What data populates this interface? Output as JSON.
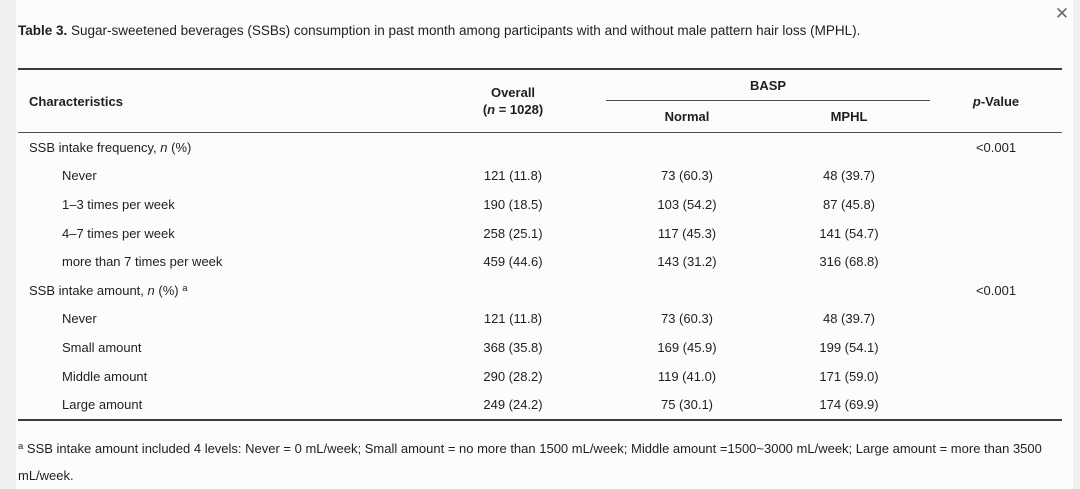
{
  "colors": {
    "page_bg": "#eff0f0",
    "card_bg": "#fcfcfd",
    "text": "#1f1f1f",
    "rule": "#3c3c3c",
    "close_icon": "#6b6b6b"
  },
  "icons": {
    "close": "✕"
  },
  "title": {
    "prefix": "Table 3.",
    "rest": " Sugar-sweetened beverages (SSBs) consumption in past month among participants with and without male pattern hair loss (MPHL)."
  },
  "table": {
    "header": {
      "characteristics": "Characteristics",
      "overall_line1": "Overall",
      "overall_line2_parts": [
        {
          "text": "("
        },
        {
          "text": "n",
          "italic": true
        },
        {
          "text": " = 1028)"
        }
      ],
      "group": "BASP",
      "sub_normal": "Normal",
      "sub_mphl": "MPHL",
      "pvalue_parts": [
        {
          "text": "p",
          "italic": true
        },
        {
          "text": "-Value"
        }
      ]
    },
    "rows": [
      {
        "indent": false,
        "label_parts": [
          {
            "text": "SSB intake frequency, "
          },
          {
            "text": "n",
            "italic": true
          },
          {
            "text": " (%)"
          }
        ],
        "overall": "",
        "normal": "",
        "mphl": "",
        "p_value": "<0.001"
      },
      {
        "indent": true,
        "label_parts": [
          {
            "text": "Never"
          }
        ],
        "overall": "121 (11.8)",
        "normal": "73 (60.3)",
        "mphl": "48 (39.7)",
        "p_value": ""
      },
      {
        "indent": true,
        "label_parts": [
          {
            "text": "1–3 times per week"
          }
        ],
        "overall": "190 (18.5)",
        "normal": "103 (54.2)",
        "mphl": "87 (45.8)",
        "p_value": ""
      },
      {
        "indent": true,
        "label_parts": [
          {
            "text": "4–7 times per week"
          }
        ],
        "overall": "258 (25.1)",
        "normal": "117 (45.3)",
        "mphl": "141 (54.7)",
        "p_value": ""
      },
      {
        "indent": true,
        "label_parts": [
          {
            "text": "more than 7 times per week"
          }
        ],
        "overall": "459 (44.6)",
        "normal": "143 (31.2)",
        "mphl": "316 (68.8)",
        "p_value": ""
      },
      {
        "indent": false,
        "label_parts": [
          {
            "text": "SSB intake amount, "
          },
          {
            "text": "n",
            "italic": true
          },
          {
            "text": " (%) "
          },
          {
            "text": "a",
            "sup": true
          }
        ],
        "overall": "",
        "normal": "",
        "mphl": "",
        "p_value": "<0.001"
      },
      {
        "indent": true,
        "label_parts": [
          {
            "text": "Never"
          }
        ],
        "overall": "121 (11.8)",
        "normal": "73 (60.3)",
        "mphl": "48 (39.7)",
        "p_value": ""
      },
      {
        "indent": true,
        "label_parts": [
          {
            "text": "Small amount"
          }
        ],
        "overall": "368 (35.8)",
        "normal": "169 (45.9)",
        "mphl": "199 (54.1)",
        "p_value": ""
      },
      {
        "indent": true,
        "label_parts": [
          {
            "text": "Middle amount"
          }
        ],
        "overall": "290 (28.2)",
        "normal": "119 (41.0)",
        "mphl": "171 (59.0)",
        "p_value": ""
      },
      {
        "indent": true,
        "label_parts": [
          {
            "text": "Large amount"
          }
        ],
        "overall": "249 (24.2)",
        "normal": "75 (30.1)",
        "mphl": "174 (69.9)",
        "p_value": ""
      }
    ]
  },
  "footnote_parts": [
    {
      "text": "a",
      "sup": true
    },
    {
      "text": " SSB intake amount included 4 levels: Never = 0 mL/week; Small amount = no more than 1500 mL/week; Middle amount =1500~3000 mL/week; Large amount = more than 3500 mL/week."
    }
  ]
}
